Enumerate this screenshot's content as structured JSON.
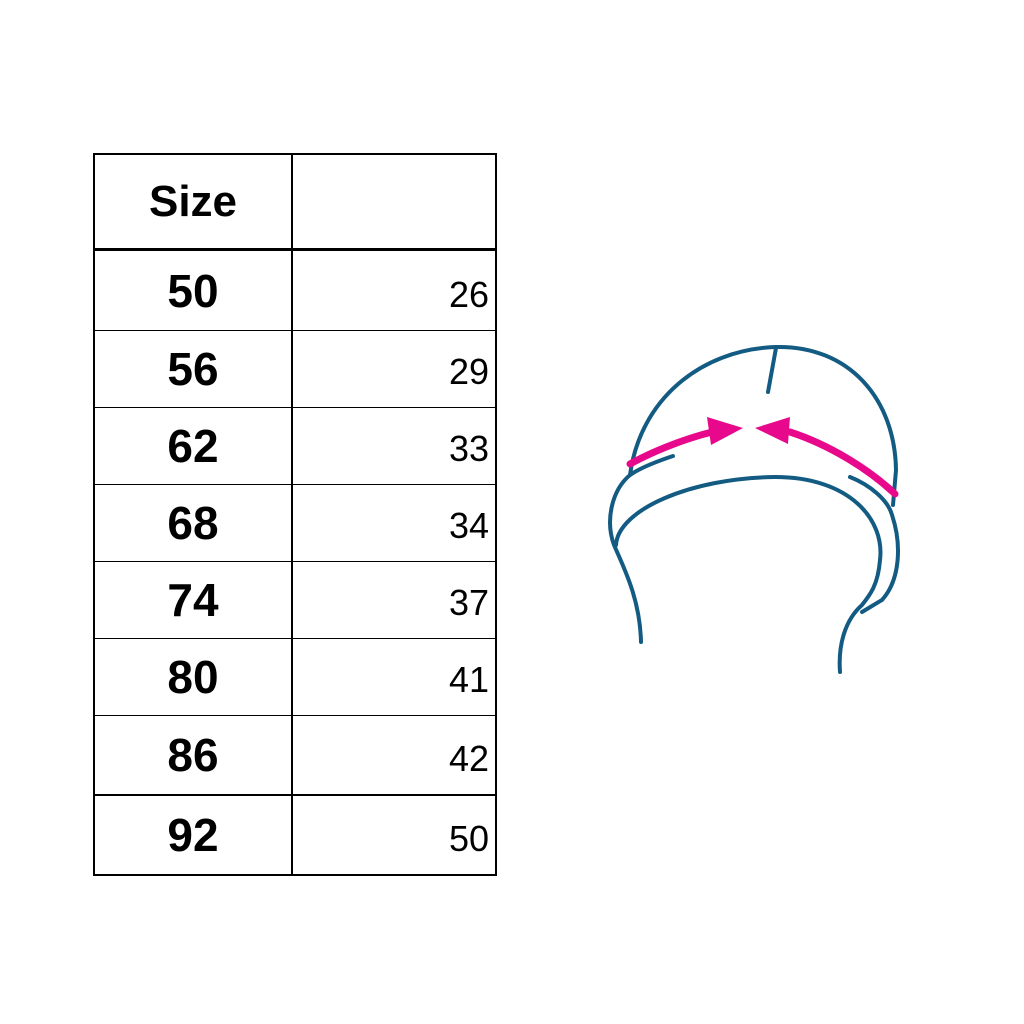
{
  "table": {
    "headers": [
      "Size",
      ""
    ],
    "rows": [
      {
        "size": "50",
        "value": "26"
      },
      {
        "size": "56",
        "value": "29"
      },
      {
        "size": "62",
        "value": "33"
      },
      {
        "size": "68",
        "value": "34"
      },
      {
        "size": "74",
        "value": "37"
      },
      {
        "size": "80",
        "value": "41"
      },
      {
        "size": "86",
        "value": "42"
      },
      {
        "size": "92",
        "value": "50"
      }
    ]
  },
  "illustration": {
    "subject": "hat-icon",
    "outline_color": "#135b82",
    "arrow_color": "#e8088c"
  }
}
